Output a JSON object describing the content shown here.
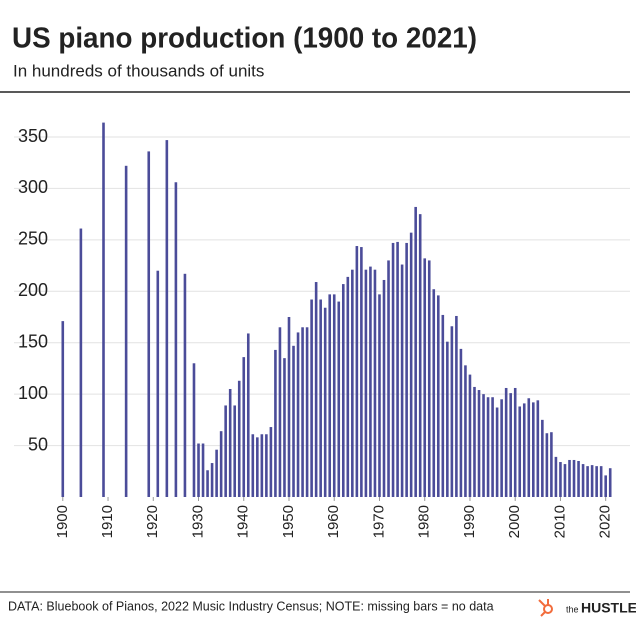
{
  "chart_data": {
    "type": "bar",
    "title": "US piano production (1900 to 2021)",
    "subtitle": "In hundreds of thousands of units",
    "source": "DATA: Bluebook of Pianos, 2022 Music Industry Census; NOTE: missing bars = no data",
    "brand": {
      "prefix": "the",
      "name": "HUSTLE"
    },
    "color": "#4b4c99",
    "x": [
      1900,
      1904,
      1909,
      1914,
      1919,
      1921,
      1923,
      1925,
      1927,
      1929,
      1930,
      1931,
      1932,
      1933,
      1934,
      1935,
      1936,
      1937,
      1938,
      1939,
      1940,
      1941,
      1942,
      1943,
      1944,
      1945,
      1946,
      1947,
      1948,
      1949,
      1950,
      1951,
      1952,
      1953,
      1954,
      1955,
      1956,
      1957,
      1958,
      1959,
      1960,
      1961,
      1962,
      1963,
      1964,
      1965,
      1966,
      1967,
      1968,
      1969,
      1970,
      1971,
      1972,
      1973,
      1974,
      1975,
      1976,
      1977,
      1978,
      1979,
      1980,
      1981,
      1982,
      1983,
      1984,
      1985,
      1986,
      1987,
      1988,
      1989,
      1990,
      1991,
      1992,
      1993,
      1994,
      1995,
      1996,
      1997,
      1998,
      1999,
      2000,
      2001,
      2002,
      2003,
      2004,
      2005,
      2006,
      2007,
      2008,
      2009,
      2010,
      2011,
      2012,
      2013,
      2014,
      2015,
      2016,
      2017,
      2018,
      2019,
      2020,
      2021
    ],
    "values": [
      171,
      261,
      364,
      322,
      336,
      220,
      347,
      306,
      217,
      130,
      52,
      52,
      26,
      33,
      46,
      64,
      89,
      105,
      89,
      113,
      136,
      159,
      61,
      58,
      61,
      61,
      68,
      143,
      165,
      135,
      175,
      147,
      160,
      165,
      165,
      192,
      209,
      192,
      184,
      197,
      197,
      190,
      207,
      214,
      221,
      244,
      243,
      221,
      224,
      221,
      197,
      211,
      230,
      247,
      248,
      226,
      247,
      257,
      282,
      275,
      232,
      230,
      202,
      196,
      177,
      151,
      166,
      176,
      144,
      128,
      119,
      107,
      104,
      100,
      97,
      97,
      87,
      95,
      106,
      101,
      106,
      88,
      91,
      96,
      92,
      94,
      75,
      62,
      63,
      39,
      34,
      32,
      36,
      36,
      35,
      32,
      30,
      31,
      30,
      30,
      21,
      28
    ],
    "xlim": [
      1898.5,
      2022.5
    ],
    "xticks": [
      1900,
      1910,
      1920,
      1930,
      1940,
      1950,
      1960,
      1970,
      1980,
      1990,
      2000,
      2010,
      2020
    ],
    "ylim": [
      0,
      385
    ],
    "yticks": [
      50,
      100,
      150,
      200,
      250,
      300,
      350
    ],
    "grid": true
  }
}
